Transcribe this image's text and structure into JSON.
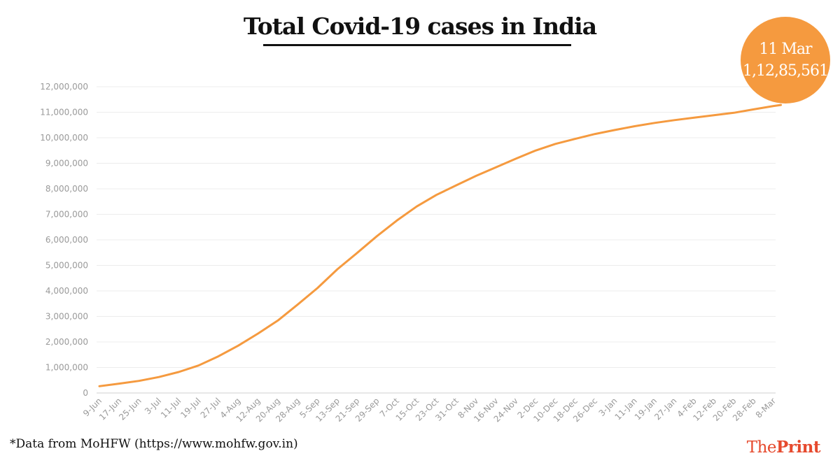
{
  "title": "Total Covid-19 cases in India",
  "callout": {
    "date": "11 Mar",
    "value": "1,12,85,561"
  },
  "footnote": "*Data from MoHFW (https://www.mohfw.gov.in)",
  "brand": {
    "part1": "The",
    "part2": "Print"
  },
  "colors": {
    "line": "#f59a3f",
    "badge": "#f59a3f",
    "brand": "#e64a2e"
  },
  "chart_data": {
    "type": "line",
    "title": "Total Covid-19 cases in India",
    "xlabel": "",
    "ylabel": "",
    "ylim": [
      0,
      12000000
    ],
    "yticks": [
      0,
      1000000,
      2000000,
      3000000,
      4000000,
      5000000,
      6000000,
      7000000,
      8000000,
      9000000,
      10000000,
      11000000,
      12000000
    ],
    "ytick_labels": [
      "0",
      "1,000,000",
      "2,000,000",
      "3,000,000",
      "4,000,000",
      "5,000,000",
      "6,000,000",
      "7,000,000",
      "8,000,000",
      "9,000,000",
      "10,000,000",
      "11,000,000",
      "12,000,000"
    ],
    "xtick_labels": [
      "9-Jun",
      "17-Jun",
      "25-Jun",
      "3-Jul",
      "11-Jul",
      "19-Jul",
      "27-Jul",
      "4-Aug",
      "12-Aug",
      "20-Aug",
      "28-Aug",
      "5-Sep",
      "13-Sep",
      "21-Sep",
      "29-Sep",
      "7-Oct",
      "15-Oct",
      "23-Oct",
      "31-Oct",
      "8-Nov",
      "16-Nov",
      "24-Nov",
      "2-Dec",
      "10-Dec",
      "18-Dec",
      "26-Dec",
      "3-Jan",
      "11-Jan",
      "19-Jan",
      "27-Jan",
      "4-Feb",
      "12-Feb",
      "20-Feb",
      "28-Feb",
      "8-Mar"
    ],
    "grid": true,
    "series": [
      {
        "x": [
          "9-Jun",
          "17-Jun",
          "25-Jun",
          "3-Jul",
          "11-Jul",
          "19-Jul",
          "27-Jul",
          "4-Aug",
          "12-Aug",
          "20-Aug",
          "28-Aug",
          "5-Sep",
          "13-Sep",
          "21-Sep",
          "29-Sep",
          "7-Oct",
          "15-Oct",
          "23-Oct",
          "31-Oct",
          "8-Nov",
          "16-Nov",
          "24-Nov",
          "2-Dec",
          "10-Dec",
          "18-Dec",
          "26-Dec",
          "3-Jan",
          "11-Jan",
          "19-Jan",
          "27-Jan",
          "4-Feb",
          "12-Feb",
          "20-Feb",
          "28-Feb",
          "8-Mar",
          "11-Mar"
        ],
        "values": [
          266000,
          367000,
          473000,
          626000,
          822000,
          1078000,
          1436000,
          1855000,
          2329000,
          2837000,
          3463000,
          4113000,
          4846000,
          5487000,
          6146000,
          6757000,
          7307000,
          7761000,
          8137000,
          8507000,
          8845000,
          9177000,
          9500000,
          9758000,
          9956000,
          10147000,
          10305000,
          10451000,
          10582000,
          10690000,
          10790000,
          10881000,
          10978000,
          11112000,
          11245000,
          11285561
        ]
      }
    ]
  }
}
